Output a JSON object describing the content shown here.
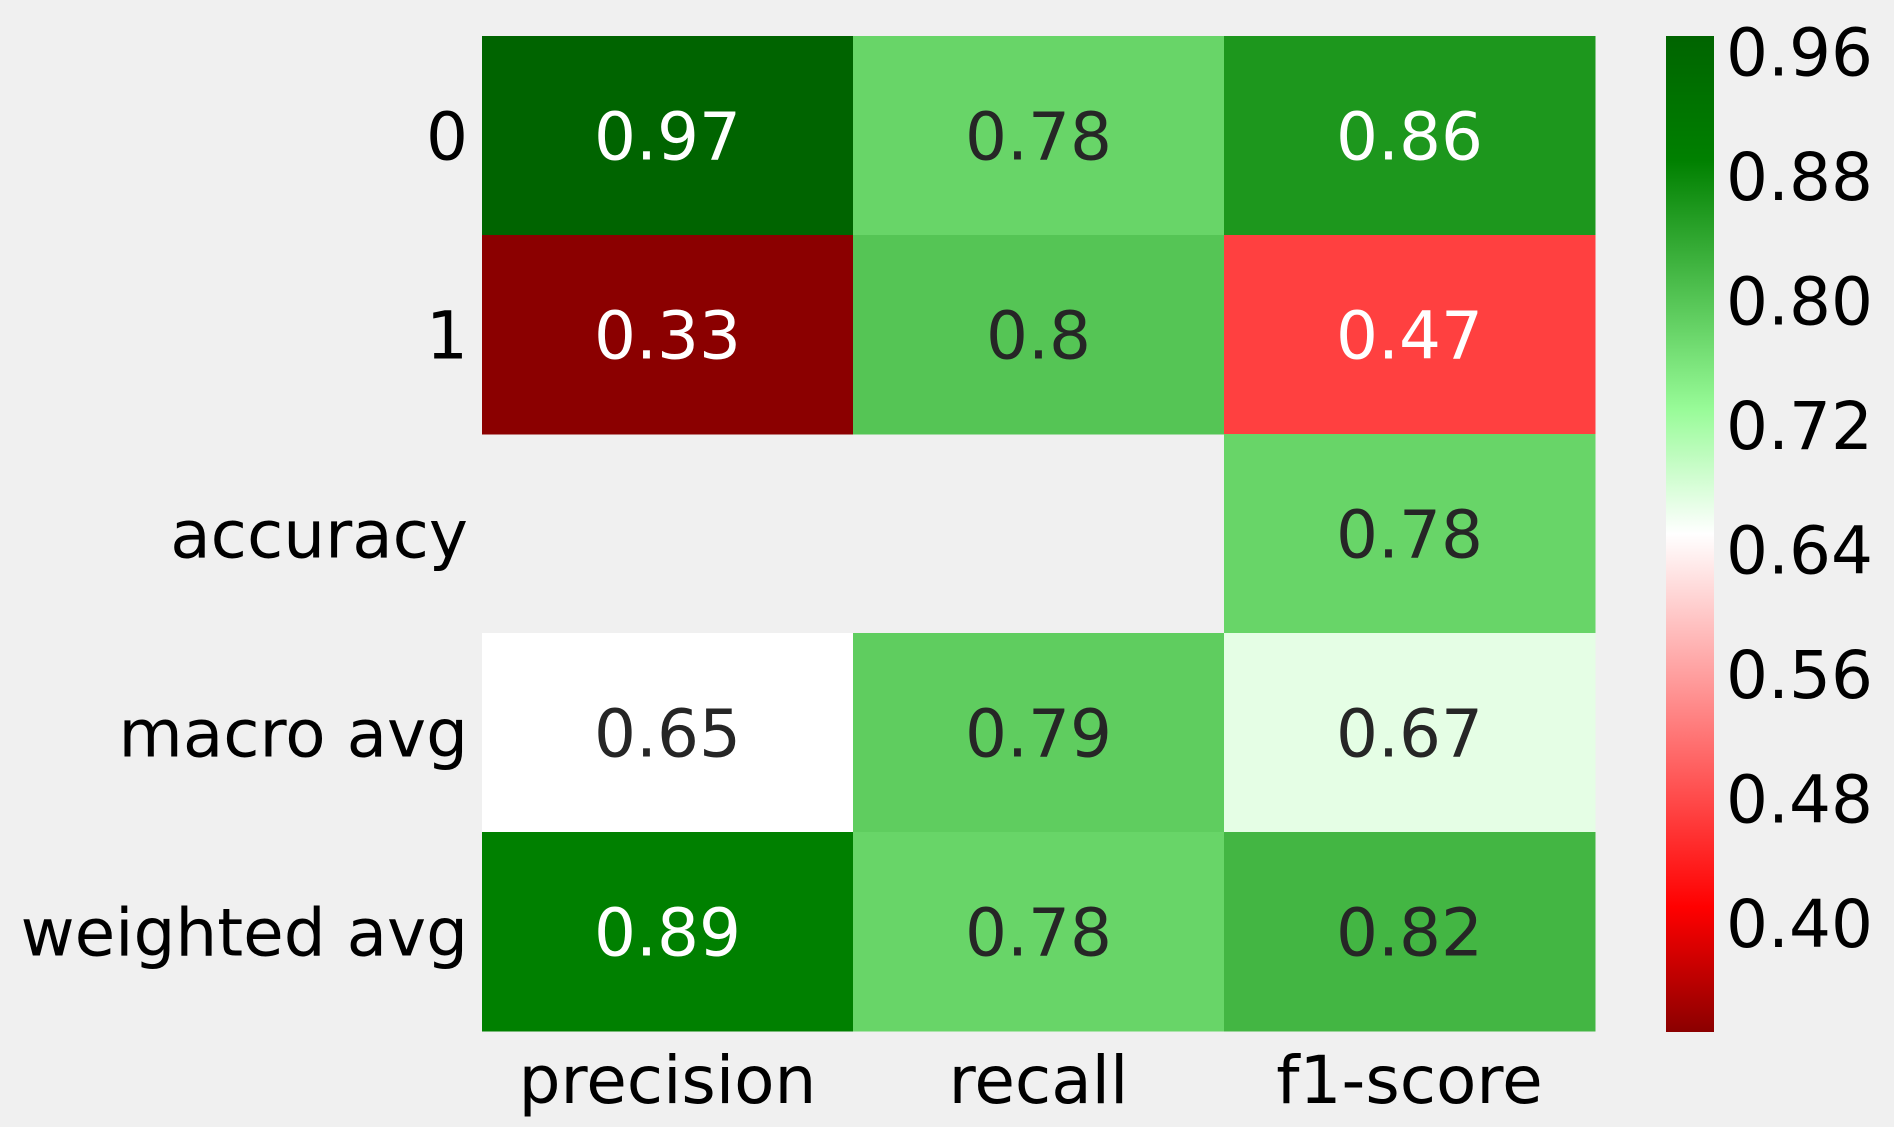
{
  "chart_data": {
    "type": "heatmap",
    "title": "",
    "xlabel": "",
    "ylabel": "",
    "x_categories": [
      "precision",
      "recall",
      "f1-score"
    ],
    "y_categories": [
      "0",
      "1",
      "accuracy",
      "macro avg",
      "weighted avg"
    ],
    "values": [
      [
        0.97,
        0.78,
        0.86
      ],
      [
        0.33,
        0.8,
        0.47
      ],
      [
        null,
        null,
        0.78
      ],
      [
        0.65,
        0.79,
        0.67
      ],
      [
        0.89,
        0.78,
        0.82
      ]
    ],
    "annotations": [
      [
        "0.97",
        "0.78",
        "0.86"
      ],
      [
        "0.33",
        "0.8",
        "0.47"
      ],
      [
        "",
        "",
        "0.78"
      ],
      [
        "0.65",
        "0.79",
        "0.67"
      ],
      [
        "0.89",
        "0.78",
        "0.82"
      ]
    ],
    "colorbar": {
      "vmin": 0.33,
      "vmax": 0.97,
      "ticks": [
        0.96,
        0.88,
        0.8,
        0.72,
        0.64,
        0.56,
        0.48,
        0.4
      ],
      "tick_labels": [
        "0.96",
        "0.88",
        "0.80",
        "0.72",
        "0.64",
        "0.56",
        "0.48",
        "0.40"
      ]
    },
    "colormap": {
      "name": "red-white-green",
      "stops": [
        {
          "value": 0.33,
          "color": "#8b0000"
        },
        {
          "value": 0.41,
          "color": "#ff0000"
        },
        {
          "value": 0.65,
          "color": "#ffffff"
        },
        {
          "value": 0.73,
          "color": "#98fb98"
        },
        {
          "value": 0.89,
          "color": "#008000"
        },
        {
          "value": 0.97,
          "color": "#006400"
        }
      ]
    },
    "missing_color": "#f0f0f0",
    "grid": false
  }
}
